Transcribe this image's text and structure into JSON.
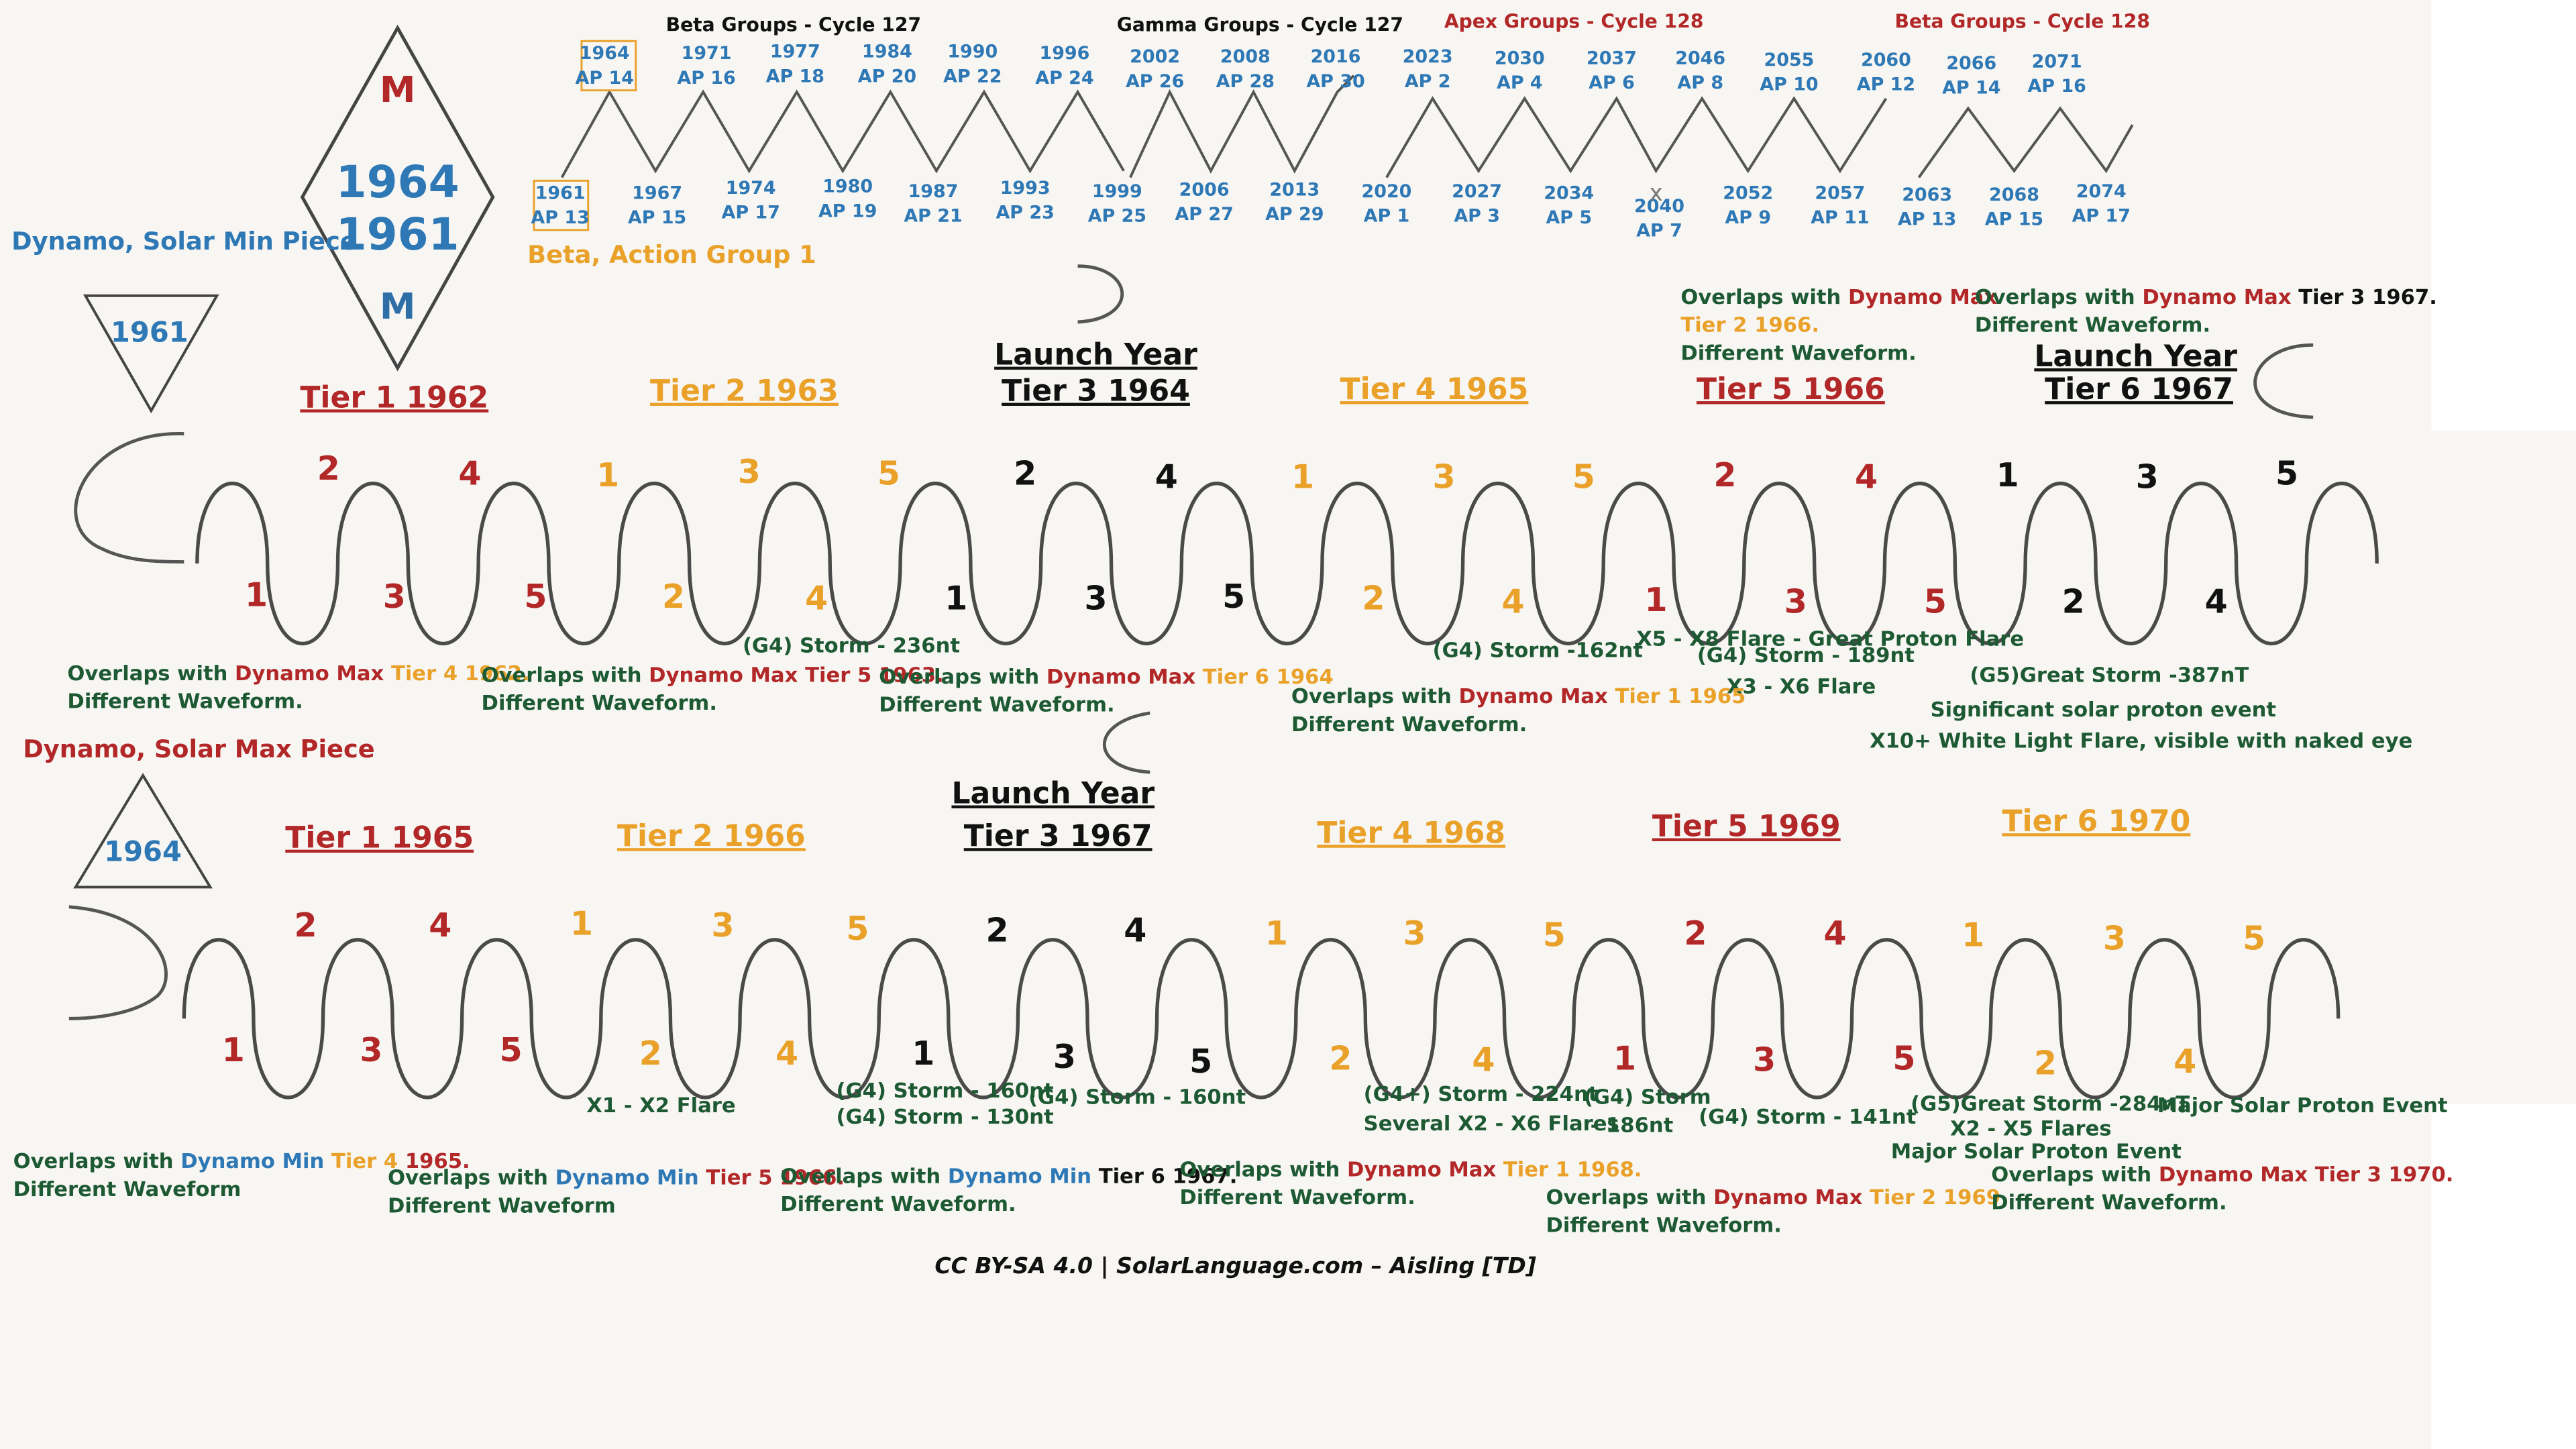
{
  "colors": {
    "blue": "#2e78b5",
    "red": "#b22727",
    "orange": "#eaa12a",
    "green": "#1d5a33",
    "black": "#111111"
  },
  "headers": {
    "beta127": "Beta Groups - Cycle 127",
    "gamma127": "Gamma Groups - Cycle 127",
    "apex128": "Apex Groups - Cycle 128",
    "beta128": "Beta Groups - Cycle 128"
  },
  "timeline_top": [
    [
      "1964",
      "AP 14"
    ],
    [
      "1971",
      "AP 16"
    ],
    [
      "1977",
      "AP 18"
    ],
    [
      "1984",
      "AP 20"
    ],
    [
      "1990",
      "AP 22"
    ],
    [
      "1996",
      "AP 24"
    ],
    [
      "2002",
      "AP 26"
    ],
    [
      "2008",
      "AP 28"
    ],
    [
      "2016",
      "AP 30"
    ],
    [
      "2023",
      "AP 2"
    ],
    [
      "2030",
      "AP 4"
    ],
    [
      "2037",
      "AP 6"
    ],
    [
      "2046",
      "AP 8"
    ],
    [
      "2055",
      "AP 10"
    ],
    [
      "2060",
      "AP 12"
    ],
    [
      "2066",
      "AP 14"
    ],
    [
      "2071",
      "AP 16"
    ]
  ],
  "timeline_bottom": [
    [
      "1961",
      "AP 13"
    ],
    [
      "1967",
      "AP 15"
    ],
    [
      "1974",
      "AP 17"
    ],
    [
      "1980",
      "AP 19"
    ],
    [
      "1987",
      "AP 21"
    ],
    [
      "1993",
      "AP 23"
    ],
    [
      "1999",
      "AP 25"
    ],
    [
      "2006",
      "AP 27"
    ],
    [
      "2013",
      "AP 29"
    ],
    [
      "2020",
      "AP 1"
    ],
    [
      "2027",
      "AP 3"
    ],
    [
      "2034",
      "AP 5"
    ],
    [
      "2040",
      "AP 7"
    ],
    [
      "2052",
      "AP 9"
    ],
    [
      "2057",
      "AP 11"
    ],
    [
      "2063",
      "AP 13"
    ],
    [
      "2068",
      "AP 15"
    ],
    [
      "2074",
      "AP 17"
    ]
  ],
  "x_mark": "x",
  "diamond": {
    "top": "M",
    "bottom": "M",
    "year1": "1964",
    "year2": "1961"
  },
  "beta_action": "Beta, Action Group 1",
  "solar_min": {
    "label": "Dynamo, Solar Min Piece",
    "year": "1961",
    "tiers": [
      "Tier 1 1962",
      "Tier 2 1963",
      "Launch Year",
      "Tier 3 1964",
      "Tier 4 1965",
      "Tier 5 1966",
      "Launch Year",
      "Tier 6 1967"
    ],
    "numbers": [
      "1",
      "2",
      "3",
      "4",
      "5",
      "1",
      "2",
      "3",
      "4",
      "5",
      "1",
      "2",
      "3",
      "4",
      "5",
      "1",
      "2",
      "3",
      "4",
      "5",
      "1",
      "2",
      "3",
      "4",
      "5",
      "1",
      "2",
      "3",
      "4",
      "5"
    ],
    "events": [
      "(G4) Storm - 236nt",
      "(G4) Storm -162nt",
      "X5 - X8 Flare - Great Proton Flare",
      "(G4) Storm - 189nt",
      "X3 - X6 Flare",
      "(G5)Great Storm -387nT",
      "Significant solar proton event",
      "X10+ White Light Flare, visible with naked eye"
    ],
    "overlaps": [
      {
        "a": "Overlaps with ",
        "b": "Dynamo Max ",
        "c": "Tier 4 1962.",
        "d": "Different Waveform."
      },
      {
        "a": "Overlaps with ",
        "b": "Dynamo Max ",
        "c": "Tier 5 1963.",
        "d": "Different Waveform."
      },
      {
        "a": "Overlaps with ",
        "b": "Dynamo Max ",
        "c": "Tier 6 1964",
        "d": "Different Waveform."
      },
      {
        "a": "Overlaps with ",
        "b": "Dynamo Max ",
        "c": "Tier 1 1965",
        "d": "Different Waveform."
      },
      {
        "a": "Overlaps with ",
        "b": "Dynamo Max",
        "c": "Tier 2 1966.",
        "d": "Different Waveform."
      },
      {
        "a": "Overlaps with ",
        "b": "Dynamo Max ",
        "c": "Tier 3 1967.",
        "d": "Different Waveform."
      }
    ]
  },
  "solar_max": {
    "label": "Dynamo, Solar Max Piece",
    "year": "1964",
    "tiers": [
      "Tier 1 1965",
      "Tier 2 1966",
      "Launch Year",
      "Tier 3 1967",
      "Tier 4 1968",
      "Tier 5 1969",
      "Tier 6 1970"
    ],
    "numbers": [
      "1",
      "2",
      "3",
      "4",
      "5",
      "1",
      "2",
      "3",
      "4",
      "5",
      "1",
      "2",
      "3",
      "4",
      "5",
      "1",
      "2",
      "3",
      "4",
      "5",
      "1",
      "2",
      "3",
      "4",
      "5",
      "1",
      "2",
      "3",
      "4",
      "5"
    ],
    "events": [
      "X1 - X2 Flare",
      "(G4) Storm - 160nt",
      "(G4) Storm - 130nt",
      "(G4) Storm - 160nt",
      "(G4+) Storm - 224nt",
      "Several X2 - X6 Flares",
      "(G4) Storm",
      "- 186nt",
      "(G4) Storm - 141nt",
      "(G5)Great Storm -284nT",
      "X2 - X5 Flares",
      "Major Solar Proton Event",
      "Major Solar Proton Event"
    ],
    "overlaps": [
      {
        "a": "Overlaps with ",
        "b": "Dynamo Min ",
        "c": "Tier 4 ",
        "e": "1965.",
        "d": "Different Waveform"
      },
      {
        "a": "Overlaps with ",
        "b": "Dynamo Min ",
        "c": "Tier 5 1966.",
        "d": "Different Waveform"
      },
      {
        "a": "Overlaps with ",
        "b": "Dynamo Min ",
        "c": "Tier 6 1967.",
        "d": "Different Waveform."
      },
      {
        "a": "Overlaps with ",
        "b": "Dynamo Max ",
        "c": "Tier 1 1968.",
        "d": "Different Waveform."
      },
      {
        "a": "Overlaps with ",
        "b": "Dynamo Max ",
        "c": "Tier 2 1969",
        "d": "Different Waveform."
      },
      {
        "a": "Overlaps with ",
        "b": "Dynamo Max ",
        "c": "Tier 3 1970.",
        "d": "Different Waveform."
      }
    ]
  },
  "credit": "CC BY-SA 4.0 | SolarLanguage.com – Aisling [TD]"
}
